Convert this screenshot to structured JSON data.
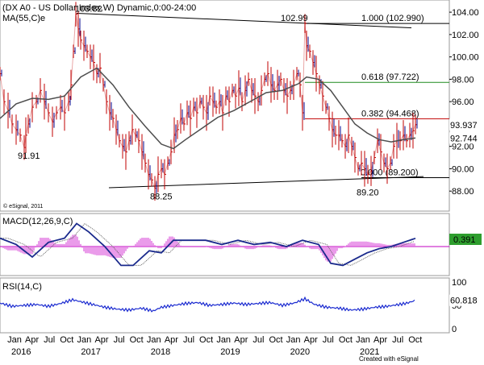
{
  "chart_data": {
    "type": "line",
    "title": "(DX A0 - US Dollar Index,W) Dynamic,0:00-24:00",
    "ma_label": "MA(55,C)e",
    "credit": "© eSignal, 2011",
    "footer_credit": "Created with eSignal",
    "time_axis": {
      "months": [
        "Jan",
        "Apr",
        "Jul",
        "Oct",
        "Jan",
        "Apr",
        "Jul",
        "Oct",
        "Jan",
        "Apr",
        "Jul",
        "Oct",
        "Jan",
        "Apr",
        "Jul",
        "Oct",
        "Jan",
        "Apr",
        "Jul",
        "Oct",
        "Jan",
        "Apr",
        "Jul",
        "Oct"
      ],
      "years": [
        "2016",
        "2017",
        "2018",
        "2019",
        "2020",
        "2021"
      ]
    },
    "price_panel": {
      "ylim": [
        86.5,
        104.8
      ],
      "y_ticks": [
        "104.00",
        "102.00",
        "100.00",
        "98.00",
        "96.00",
        "94.00",
        "92.00",
        "90.00",
        "88.00"
      ],
      "last_price": "93.937",
      "ma_value": "92.744",
      "annotations": [
        "103.82",
        "91.91",
        "88.25",
        "102.99",
        "89.20"
      ],
      "fib_levels": [
        {
          "label": "1.000 (102.990)",
          "value": 102.99,
          "color": "#000000"
        },
        {
          "label": "0.618 (97.722)",
          "value": 97.722,
          "color": "#1e8c1e"
        },
        {
          "label": "0.382 (94.468)",
          "value": 94.468,
          "color": "#c00000"
        },
        {
          "label": "0.000 (89.200)",
          "value": 89.2,
          "color": "#000000"
        }
      ],
      "series": [
        {
          "name": "Price",
          "values": [
            [
              0,
              98.5
            ],
            [
              5,
              96
            ],
            [
              10,
              95.2
            ],
            [
              15,
              94
            ],
            [
              20,
              93.5
            ],
            [
              25,
              93
            ],
            [
              30,
              91.9
            ],
            [
              32,
              93
            ],
            [
              35,
              94
            ],
            [
              40,
              95.5
            ],
            [
              45,
              96
            ],
            [
              50,
              97
            ],
            [
              55,
              96
            ],
            [
              60,
              95
            ],
            [
              65,
              94.2
            ],
            [
              70,
              95
            ],
            [
              75,
              95.5
            ],
            [
              80,
              95
            ],
            [
              85,
              96
            ],
            [
              88,
              97.5
            ],
            [
              91,
              100.5
            ],
            [
              94,
              103.82
            ],
            [
              97,
              102.5
            ],
            [
              100,
              101.5
            ],
            [
              104,
              101
            ],
            [
              108,
              100.5
            ],
            [
              112,
              100
            ],
            [
              116,
              99.5
            ],
            [
              120,
              98.5
            ],
            [
              124,
              99
            ],
            [
              128,
              97.5
            ],
            [
              132,
              96
            ],
            [
              136,
              95
            ],
            [
              140,
              94.5
            ],
            [
              144,
              93.5
            ],
            [
              148,
              92.5
            ],
            [
              152,
              92
            ],
            [
              156,
              91.5
            ],
            [
              160,
              92.5
            ],
            [
              164,
              93.5
            ],
            [
              168,
              93
            ],
            [
              172,
              92.5
            ],
            [
              176,
              91.5
            ],
            [
              180,
              90.5
            ],
            [
              184,
              89.5
            ],
            [
              188,
              89
            ],
            [
              192,
              88.25
            ],
            [
              196,
              89.5
            ],
            [
              200,
              90
            ],
            [
              204,
              89.5
            ],
            [
              208,
              90.5
            ],
            [
              212,
              91.5
            ],
            [
              216,
              93
            ],
            [
              220,
              93.5
            ],
            [
              224,
              94.5
            ],
            [
              228,
              94
            ],
            [
              232,
              95
            ],
            [
              236,
              94.5
            ],
            [
              240,
              95.5
            ],
            [
              244,
              95
            ],
            [
              248,
              96
            ],
            [
              252,
              95.5
            ],
            [
              256,
              95
            ],
            [
              260,
              96.5
            ],
            [
              264,
              96
            ],
            [
              268,
              95.5
            ],
            [
              272,
              96
            ],
            [
              276,
              95
            ],
            [
              280,
              96.5
            ],
            [
              284,
              96
            ],
            [
              288,
              97
            ],
            [
              292,
              96.5
            ],
            [
              296,
              97.2
            ],
            [
              300,
              96
            ],
            [
              304,
              97
            ],
            [
              308,
              98
            ],
            [
              312,
              97
            ],
            [
              316,
              96.5
            ],
            [
              320,
              96
            ],
            [
              324,
              97
            ],
            [
              328,
              98
            ],
            [
              332,
              98.5
            ],
            [
              336,
              97.5
            ],
            [
              340,
              97
            ],
            [
              344,
              97.5
            ],
            [
              348,
              98
            ],
            [
              352,
              97
            ],
            [
              356,
              96.5
            ],
            [
              360,
              97
            ],
            [
              364,
              97.5
            ],
            [
              368,
              98.5
            ],
            [
              372,
              97.5
            ],
            [
              375,
              95
            ],
            [
              378,
              102.99
            ],
            [
              380,
              101
            ],
            [
              384,
              100.5
            ],
            [
              388,
              99.5
            ],
            [
              392,
              98.5
            ],
            [
              396,
              97.5
            ],
            [
              400,
              96.5
            ],
            [
              404,
              95.5
            ],
            [
              408,
              94.5
            ],
            [
              412,
              93.5
            ],
            [
              416,
              93
            ],
            [
              420,
              93
            ],
            [
              424,
              92.5
            ],
            [
              428,
              92
            ],
            [
              432,
              93
            ],
            [
              436,
              92
            ],
            [
              440,
              91
            ],
            [
              444,
              90
            ],
            [
              448,
              90.5
            ],
            [
              452,
              90
            ],
            [
              456,
              89.5
            ],
            [
              460,
              89.8
            ],
            [
              464,
              91
            ],
            [
              468,
              92.5
            ],
            [
              472,
              91.5
            ],
            [
              476,
              90.5
            ],
            [
              480,
              90
            ],
            [
              484,
              90.5
            ],
            [
              488,
              92
            ],
            [
              492,
              92.5
            ],
            [
              496,
              92.5
            ],
            [
              500,
              93
            ],
            [
              504,
              92.5
            ],
            [
              508,
              93
            ],
            [
              512,
              93.4
            ],
            [
              515,
              93.937
            ]
          ]
        },
        {
          "name": "MA(55,C)e",
          "values": [
            [
              0,
              94.5
            ],
            [
              20,
              95.8
            ],
            [
              40,
              96.3
            ],
            [
              60,
              96.2
            ],
            [
              80,
              96.5
            ],
            [
              100,
              98.2
            ],
            [
              120,
              99.0
            ],
            [
              140,
              97.5
            ],
            [
              160,
              95.5
            ],
            [
              180,
              93.8
            ],
            [
              200,
              92.2
            ],
            [
              215,
              91.8
            ],
            [
              230,
              92.6
            ],
            [
              250,
              93.6
            ],
            [
              270,
              94.6
            ],
            [
              290,
              95.2
            ],
            [
              310,
              96.0
            ],
            [
              330,
              96.8
            ],
            [
              350,
              97.0
            ],
            [
              370,
              97.6
            ],
            [
              380,
              98.2
            ],
            [
              395,
              98.0
            ],
            [
              410,
              97
            ],
            [
              425,
              95.5
            ],
            [
              440,
              94.0
            ],
            [
              455,
              93.2
            ],
            [
              470,
              92.6
            ],
            [
              485,
              92.4
            ],
            [
              500,
              92.6
            ],
            [
              515,
              92.744
            ]
          ]
        }
      ]
    },
    "macd_panel": {
      "label": "MACD(12,26,9,C)",
      "last_value": "0.391",
      "series": [
        {
          "name": "MACD",
          "values": [
            [
              0,
              0.4
            ],
            [
              20,
              0.1
            ],
            [
              40,
              -0.5
            ],
            [
              60,
              0.2
            ],
            [
              80,
              0.4
            ],
            [
              95,
              1.1
            ],
            [
              110,
              0.7
            ],
            [
              130,
              0.0
            ],
            [
              150,
              -0.9
            ],
            [
              165,
              -0.9
            ],
            [
              185,
              -0.2
            ],
            [
              200,
              -0.3
            ],
            [
              215,
              0.3
            ],
            [
              235,
              0.3
            ],
            [
              255,
              0.3
            ],
            [
              275,
              0.1
            ],
            [
              295,
              0.3
            ],
            [
              315,
              0.1
            ],
            [
              335,
              0.2
            ],
            [
              355,
              0.0
            ],
            [
              375,
              0.3
            ],
            [
              395,
              0.1
            ],
            [
              410,
              -0.8
            ],
            [
              425,
              -0.9
            ],
            [
              440,
              -0.6
            ],
            [
              455,
              -0.3
            ],
            [
              470,
              -0.1
            ],
            [
              485,
              0.0
            ],
            [
              500,
              0.2
            ],
            [
              515,
              0.391
            ]
          ]
        }
      ]
    },
    "rsi_panel": {
      "label": "RSI(14,C)",
      "y_ticks": [
        "100",
        "50",
        "0"
      ],
      "last_value": "60.818",
      "series": [
        {
          "name": "RSI",
          "values": [
            [
              0,
              55
            ],
            [
              15,
              48
            ],
            [
              30,
              50
            ],
            [
              45,
              52
            ],
            [
              60,
              48
            ],
            [
              75,
              54
            ],
            [
              90,
              62
            ],
            [
              100,
              58
            ],
            [
              115,
              52
            ],
            [
              130,
              46
            ],
            [
              145,
              42
            ],
            [
              160,
              40
            ],
            [
              175,
              44
            ],
            [
              190,
              38
            ],
            [
              200,
              46
            ],
            [
              215,
              50
            ],
            [
              230,
              54
            ],
            [
              245,
              56
            ],
            [
              260,
              50
            ],
            [
              275,
              52
            ],
            [
              290,
              55
            ],
            [
              305,
              52
            ],
            [
              320,
              54
            ],
            [
              335,
              56
            ],
            [
              350,
              50
            ],
            [
              365,
              55
            ],
            [
              378,
              64
            ],
            [
              390,
              52
            ],
            [
              405,
              46
            ],
            [
              420,
              44
            ],
            [
              435,
              40
            ],
            [
              450,
              42
            ],
            [
              465,
              46
            ],
            [
              480,
              48
            ],
            [
              495,
              52
            ],
            [
              505,
              55
            ],
            [
              515,
              60.8
            ]
          ]
        }
      ]
    },
    "colors": {
      "price": "#c00000",
      "ma": "#4d4d4d",
      "macd": "#1a2a8c",
      "rsi": "#1a2ad0",
      "hist": "#e070e0",
      "fib_green": "#1e8c1e",
      "fib_red": "#c00000"
    }
  }
}
